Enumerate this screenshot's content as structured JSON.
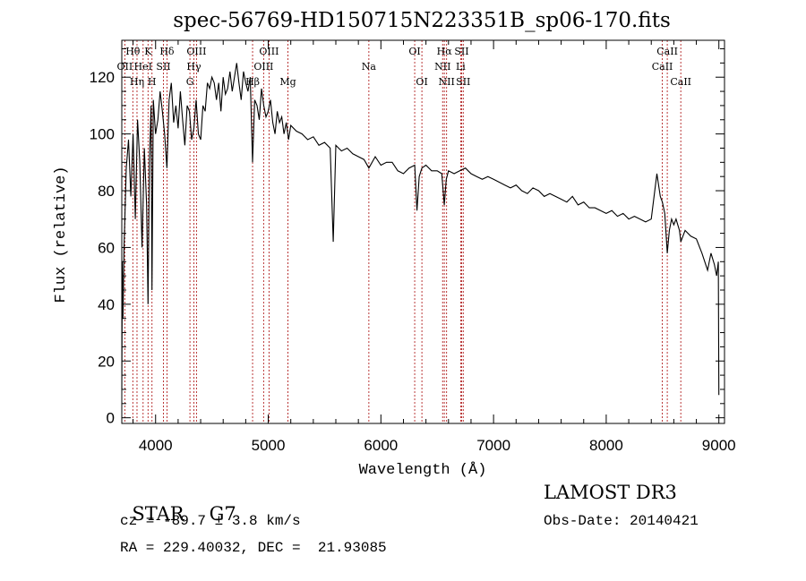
{
  "chart_data": {
    "type": "line",
    "title": "spec-56769-HD150715N223351B_sp06-170.fits",
    "xlabel": "Wavelength (Å)",
    "ylabel": "Flux (relative)",
    "xlim": [
      3700,
      9050
    ],
    "ylim": [
      -2,
      133
    ],
    "x_ticks": [
      4000,
      5000,
      6000,
      7000,
      8000,
      9000
    ],
    "y_ticks": [
      0,
      20,
      40,
      60,
      80,
      100,
      120
    ],
    "grid": false,
    "series": [
      {
        "name": "flux",
        "x": [
          3700,
          3705,
          3710,
          3720,
          3740,
          3760,
          3780,
          3800,
          3820,
          3840,
          3860,
          3880,
          3900,
          3920,
          3933,
          3945,
          3960,
          3968,
          3980,
          4000,
          4020,
          4040,
          4060,
          4080,
          4101,
          4120,
          4140,
          4160,
          4180,
          4200,
          4220,
          4240,
          4260,
          4280,
          4300,
          4320,
          4340,
          4360,
          4380,
          4400,
          4420,
          4440,
          4460,
          4480,
          4500,
          4520,
          4540,
          4560,
          4580,
          4600,
          4620,
          4640,
          4660,
          4680,
          4700,
          4720,
          4740,
          4760,
          4780,
          4800,
          4820,
          4840,
          4861,
          4880,
          4900,
          4920,
          4940,
          4960,
          4980,
          5000,
          5020,
          5040,
          5060,
          5080,
          5100,
          5120,
          5140,
          5160,
          5180,
          5200,
          5250,
          5300,
          5350,
          5400,
          5450,
          5500,
          5550,
          5577,
          5600,
          5650,
          5700,
          5750,
          5800,
          5850,
          5893,
          5950,
          6000,
          6050,
          6100,
          6150,
          6200,
          6250,
          6300,
          6320,
          6340,
          6364,
          6400,
          6450,
          6500,
          6540,
          6563,
          6580,
          6600,
          6650,
          6700,
          6750,
          6800,
          6850,
          6900,
          6950,
          7000,
          7050,
          7100,
          7150,
          7200,
          7250,
          7300,
          7350,
          7400,
          7450,
          7500,
          7550,
          7600,
          7650,
          7700,
          7750,
          7800,
          7850,
          7900,
          7950,
          8000,
          8050,
          8100,
          8150,
          8200,
          8250,
          8300,
          8350,
          8400,
          8450,
          8480,
          8498,
          8520,
          8542,
          8560,
          8580,
          8600,
          8620,
          8650,
          8662,
          8700,
          8750,
          8800,
          8850,
          8900,
          8930,
          8960,
          8980,
          8995,
          9000
        ],
        "values": [
          10,
          55,
          35,
          60,
          88,
          98,
          78,
          100,
          70,
          105,
          90,
          60,
          95,
          75,
          40,
          90,
          110,
          45,
          112,
          100,
          105,
          115,
          108,
          100,
          88,
          112,
          118,
          104,
          110,
          102,
          115,
          105,
          96,
          110,
          108,
          98,
          102,
          112,
          100,
          98,
          110,
          108,
          118,
          116,
          120,
          118,
          112,
          118,
          108,
          120,
          114,
          116,
          122,
          115,
          120,
          125,
          118,
          112,
          122,
          118,
          115,
          120,
          90,
          112,
          110,
          105,
          116,
          110,
          106,
          108,
          112,
          104,
          100,
          108,
          104,
          106,
          100,
          104,
          98,
          103,
          101,
          100,
          98,
          99,
          96,
          97,
          95,
          62,
          96,
          94,
          95,
          93,
          92,
          91,
          88,
          92,
          89,
          90,
          90,
          87,
          86,
          88,
          89,
          73,
          85,
          88,
          89,
          87,
          87,
          86,
          75,
          84,
          87,
          86,
          87,
          88,
          86,
          85,
          84,
          85,
          84,
          83,
          82,
          81,
          82,
          80,
          79,
          81,
          80,
          78,
          79,
          78,
          77,
          76,
          78,
          75,
          76,
          74,
          74,
          73,
          72,
          73,
          71,
          72,
          70,
          71,
          70,
          69,
          70,
          86,
          78,
          76,
          72,
          58,
          66,
          70,
          68,
          70,
          66,
          62,
          66,
          64,
          63,
          58,
          52,
          58,
          54,
          50,
          55,
          8
        ]
      }
    ],
    "line_markers": [
      {
        "label": "Hθ",
        "x": 3798,
        "row": 1
      },
      {
        "label": "OII",
        "x": 3727,
        "row": 2
      },
      {
        "label": "Hη",
        "x": 3835,
        "row": 3
      },
      {
        "label": "HeI",
        "x": 3889,
        "row": 2
      },
      {
        "label": "K",
        "x": 3933,
        "row": 1
      },
      {
        "label": "H",
        "x": 3968,
        "row": 3
      },
      {
        "label": "Hδ",
        "x": 4101,
        "row": 1
      },
      {
        "label": "SII",
        "x": 4070,
        "row": 2
      },
      {
        "label": "OIII",
        "x": 4363,
        "row": 1
      },
      {
        "label": "Hγ",
        "x": 4340,
        "row": 2
      },
      {
        "label": "G",
        "x": 4305,
        "row": 3
      },
      {
        "label": "OIII",
        "x": 5007,
        "row": 1
      },
      {
        "label": "OIII",
        "x": 4959,
        "row": 2
      },
      {
        "label": "Hβ",
        "x": 4861,
        "row": 3
      },
      {
        "label": "Mg",
        "x": 5175,
        "row": 3
      },
      {
        "label": "Na",
        "x": 5893,
        "row": 2
      },
      {
        "label": "OI",
        "x": 6300,
        "row": 1
      },
      {
        "label": "OI",
        "x": 6364,
        "row": 3
      },
      {
        "label": "Hα",
        "x": 6563,
        "row": 1
      },
      {
        "label": "NII",
        "x": 6548,
        "row": 2
      },
      {
        "label": "NII",
        "x": 6583,
        "row": 3
      },
      {
        "label": "SII",
        "x": 6717,
        "row": 1
      },
      {
        "label": "Li",
        "x": 6708,
        "row": 2
      },
      {
        "label": "SII",
        "x": 6731,
        "row": 3
      },
      {
        "label": "CaII",
        "x": 8542,
        "row": 1
      },
      {
        "label": "CaII",
        "x": 8498,
        "row": 2
      },
      {
        "label": "CaII",
        "x": 8662,
        "row": 3
      }
    ]
  },
  "info": {
    "class_label": "STAR",
    "subclass": "G7",
    "cz": "cz = -89.7 ± 3.8 km/s",
    "coords": "RA = 229.40032, DEC =  21.93085",
    "survey": "LAMOST DR3",
    "obs_date": "Obs-Date: 20140421"
  }
}
